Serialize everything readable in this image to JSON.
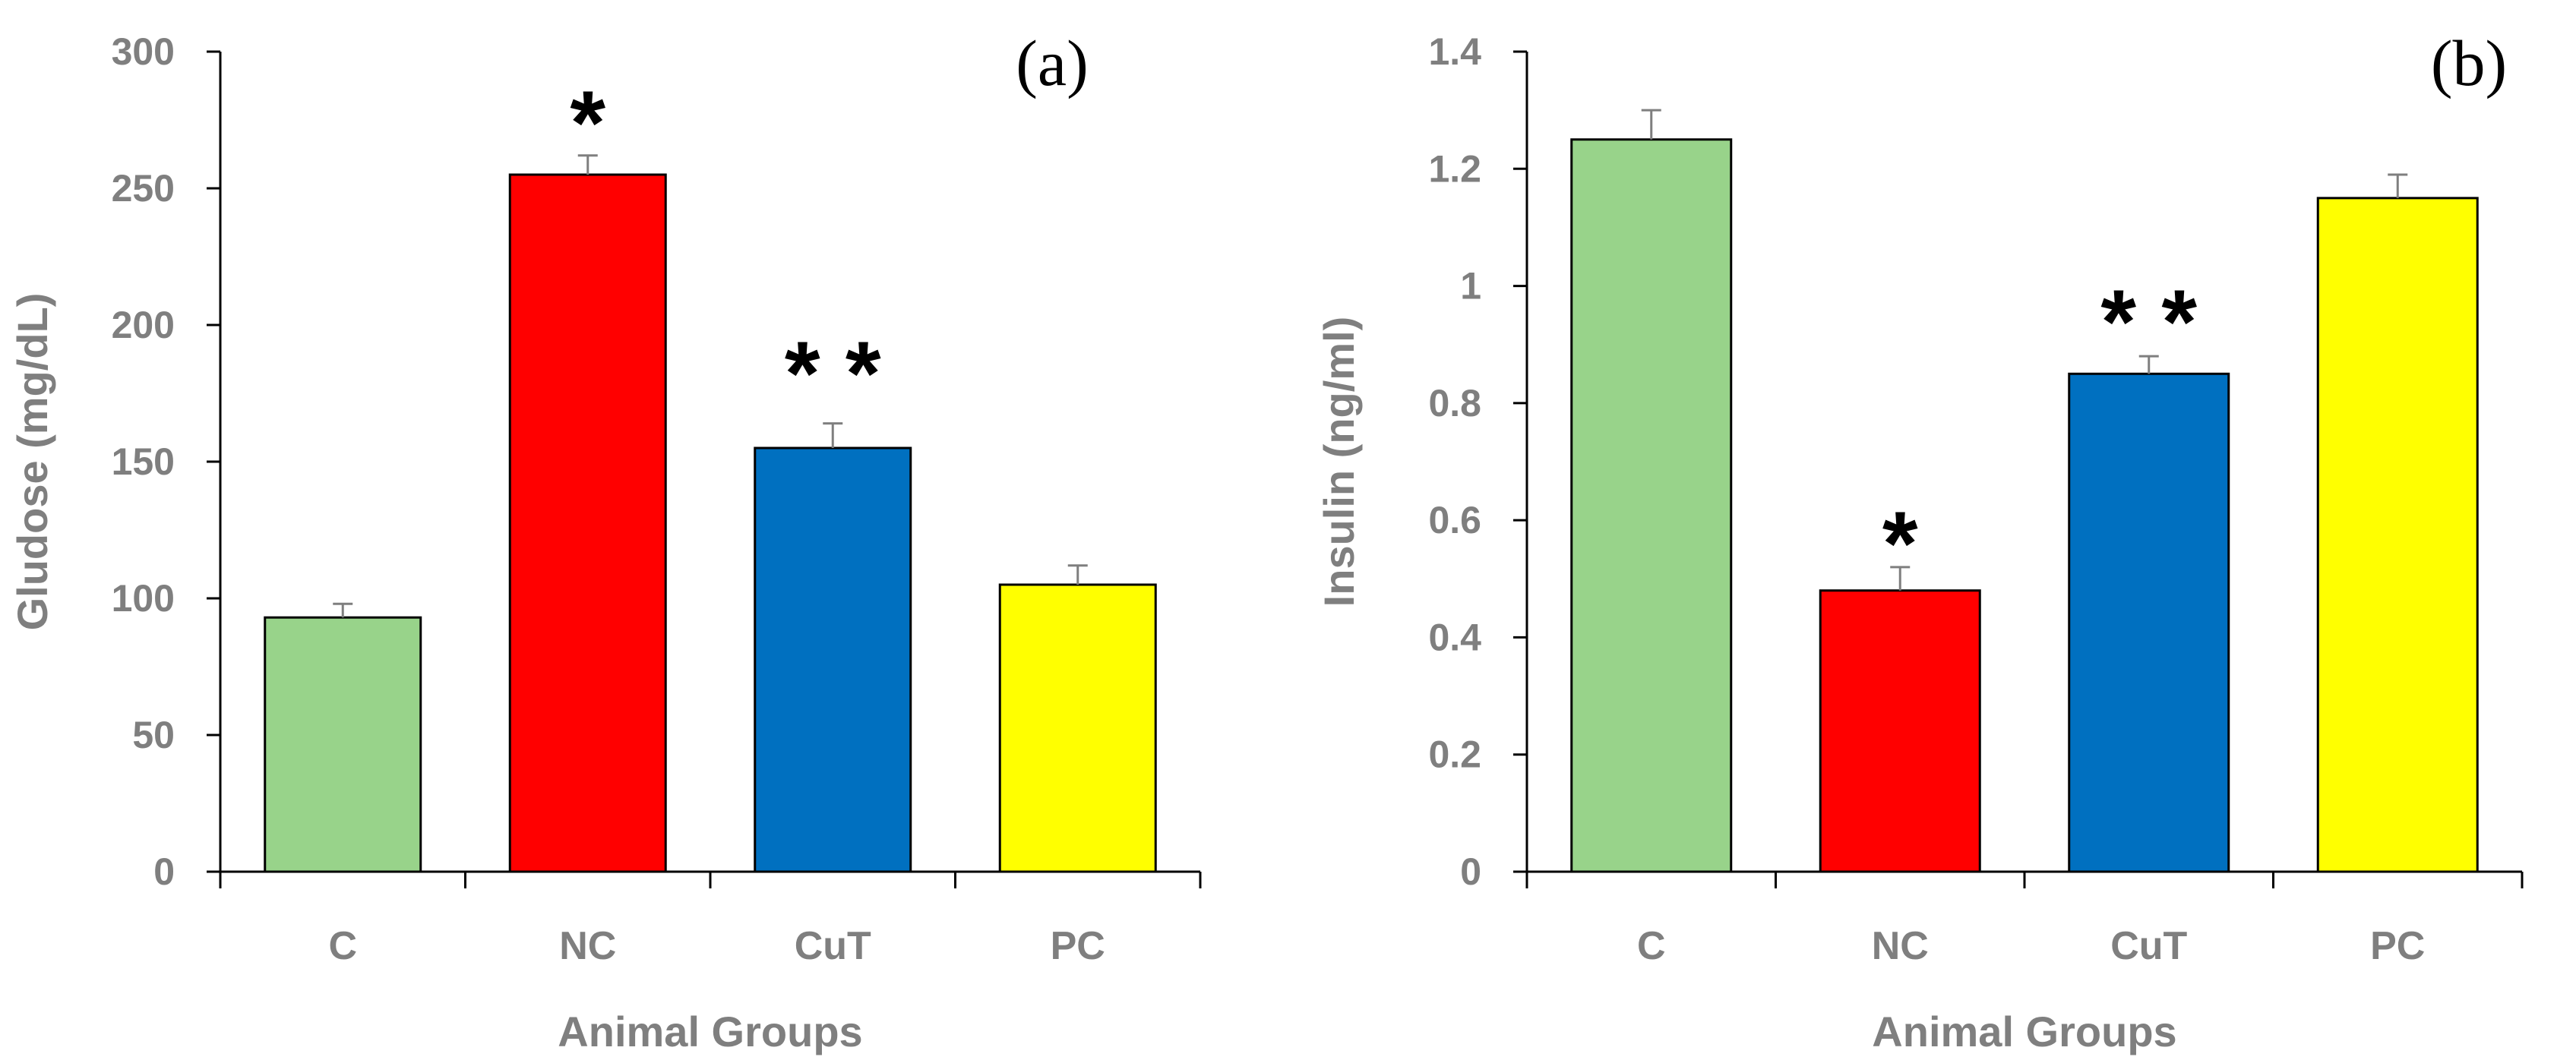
{
  "chart_data": [
    {
      "type": "bar",
      "panel": "(a)",
      "categories": [
        "C",
        "NC",
        "CuT",
        "PC"
      ],
      "values": [
        93,
        255,
        155,
        105
      ],
      "errors": [
        5,
        7,
        9,
        7
      ],
      "annotations": [
        "",
        "*",
        "* *",
        ""
      ],
      "colors": [
        "#98d38a",
        "#ff0000",
        "#0070c0",
        "#ffff00"
      ],
      "xlabel": "Animal Groups",
      "ylabel": "Gludose (mg/dL)",
      "ylim": [
        0,
        300
      ],
      "yticks": [
        0,
        50,
        100,
        150,
        200,
        250,
        300
      ],
      "ytick_labels": [
        "0",
        "50",
        "100",
        "150",
        "200",
        "250",
        "300"
      ],
      "grid": false
    },
    {
      "type": "bar",
      "panel": "(b)",
      "categories": [
        "C",
        "NC",
        "CuT",
        "PC"
      ],
      "values": [
        1.25,
        0.48,
        0.85,
        1.15
      ],
      "errors": [
        0.05,
        0.04,
        0.03,
        0.04
      ],
      "annotations": [
        "",
        "*",
        "* *",
        ""
      ],
      "colors": [
        "#98d38a",
        "#ff0000",
        "#0070c0",
        "#ffff00"
      ],
      "xlabel": "Animal Groups",
      "ylabel": "Insulin (ng/ml)",
      "ylim": [
        0,
        1.4
      ],
      "yticks": [
        0,
        0.2,
        0.4,
        0.6,
        0.8,
        1.0,
        1.2,
        1.4
      ],
      "ytick_labels": [
        "0",
        "0.2",
        "0.4",
        "0.6",
        "0.8",
        "1",
        "1.2",
        "1.4"
      ],
      "grid": false
    }
  ]
}
